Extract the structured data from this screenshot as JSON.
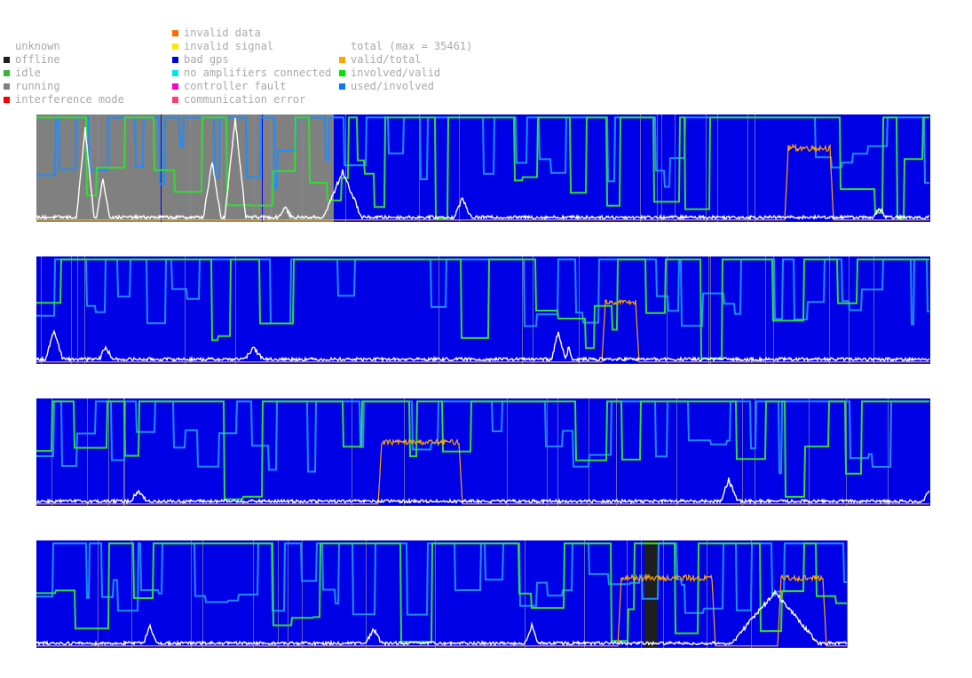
{
  "legend": {
    "col1": [
      {
        "label": "unknown",
        "color": null
      },
      {
        "label": "offline",
        "color": "#1e1e1e"
      },
      {
        "label": "idle",
        "color": "#3cb43c"
      },
      {
        "label": "running",
        "color": "#808080"
      },
      {
        "label": "interference mode",
        "color": "#ff0000"
      }
    ],
    "col2": [
      {
        "label": "invalid data",
        "color": "#ff6a00"
      },
      {
        "label": "invalid signal",
        "color": "#ffe600"
      },
      {
        "label": "bad gps",
        "color": "#0000e6"
      },
      {
        "label": "no amplifiers connected",
        "color": "#00e6e6"
      },
      {
        "label": "controller fault",
        "color": "#ff00c8"
      },
      {
        "label": "communication error",
        "color": "#ff3c78"
      }
    ],
    "col3": [
      {
        "label": "total (max = 35461)",
        "color": null
      },
      {
        "label": "valid/total",
        "color": "#ffa500"
      },
      {
        "label": "involved/valid",
        "color": "#00e600"
      },
      {
        "label": "used/involved",
        "color": "#0a78ff"
      }
    ]
  },
  "chart_data": {
    "type": "area",
    "total_max": 35461,
    "ylim": [
      0,
      1
    ],
    "series_colors": {
      "total": "#ffffff",
      "valid_total": "#ffa500",
      "involved_valid": "#32dc32",
      "used_involved": "#1e8cff"
    },
    "strips": [
      {
        "bins": 1007,
        "states": [
          {
            "from": 0,
            "to": 140,
            "state": "running"
          },
          {
            "from": 140,
            "to": 141,
            "state": "bad gps"
          },
          {
            "from": 141,
            "to": 254,
            "state": "running"
          },
          {
            "from": 254,
            "to": 255,
            "state": "bad gps"
          },
          {
            "from": 255,
            "to": 335,
            "state": "running"
          },
          {
            "from": 335,
            "to": 1007,
            "state": "bad gps"
          }
        ],
        "valid_total_bumps": [
          {
            "at": 843,
            "width": 55,
            "height": 0.72
          }
        ],
        "total_peaks": [
          {
            "at": 55,
            "width": 10,
            "height": 0.85
          },
          {
            "at": 75,
            "width": 8,
            "height": 0.38
          },
          {
            "at": 198,
            "width": 10,
            "height": 0.55
          },
          {
            "at": 224,
            "width": 12,
            "height": 0.95
          },
          {
            "at": 280,
            "width": 8,
            "height": 0.12
          },
          {
            "at": 345,
            "width": 22,
            "height": 0.45
          },
          {
            "at": 480,
            "width": 10,
            "height": 0.2
          },
          {
            "at": 950,
            "width": 8,
            "height": 0.1
          }
        ]
      },
      {
        "bins": 1007,
        "states": [
          {
            "from": 0,
            "to": 1007,
            "state": "bad gps"
          }
        ],
        "valid_total_bumps": [
          {
            "at": 637,
            "width": 42,
            "height": 0.6
          }
        ],
        "total_peaks": [
          {
            "at": 20,
            "width": 10,
            "height": 0.3
          },
          {
            "at": 78,
            "width": 8,
            "height": 0.14
          },
          {
            "at": 245,
            "width": 12,
            "height": 0.12
          },
          {
            "at": 588,
            "width": 8,
            "height": 0.28
          },
          {
            "at": 600,
            "width": 4,
            "height": 0.15
          }
        ]
      },
      {
        "bins": 1007,
        "states": [
          {
            "from": 0,
            "to": 1007,
            "state": "bad gps"
          }
        ],
        "valid_total_bumps": [
          {
            "at": 385,
            "width": 95,
            "height": 0.62
          }
        ],
        "total_peaks": [
          {
            "at": 115,
            "width": 10,
            "height": 0.12
          },
          {
            "at": 780,
            "width": 10,
            "height": 0.22
          },
          {
            "at": 1005,
            "width": 6,
            "height": 0.12
          }
        ]
      },
      {
        "bins": 914,
        "states": [
          {
            "from": 0,
            "to": 685,
            "state": "bad gps"
          },
          {
            "from": 685,
            "to": 700,
            "state": "offline"
          },
          {
            "from": 700,
            "to": 914,
            "state": "bad gps"
          }
        ],
        "valid_total_bumps": [
          {
            "at": 655,
            "width": 110,
            "height": 0.68
          },
          {
            "at": 835,
            "width": 55,
            "height": 0.68
          }
        ],
        "total_peaks": [
          {
            "at": 128,
            "width": 8,
            "height": 0.18
          },
          {
            "at": 380,
            "width": 10,
            "height": 0.15
          },
          {
            "at": 558,
            "width": 8,
            "height": 0.18
          },
          {
            "at": 832,
            "width": 50,
            "height": 0.5
          }
        ]
      }
    ]
  }
}
